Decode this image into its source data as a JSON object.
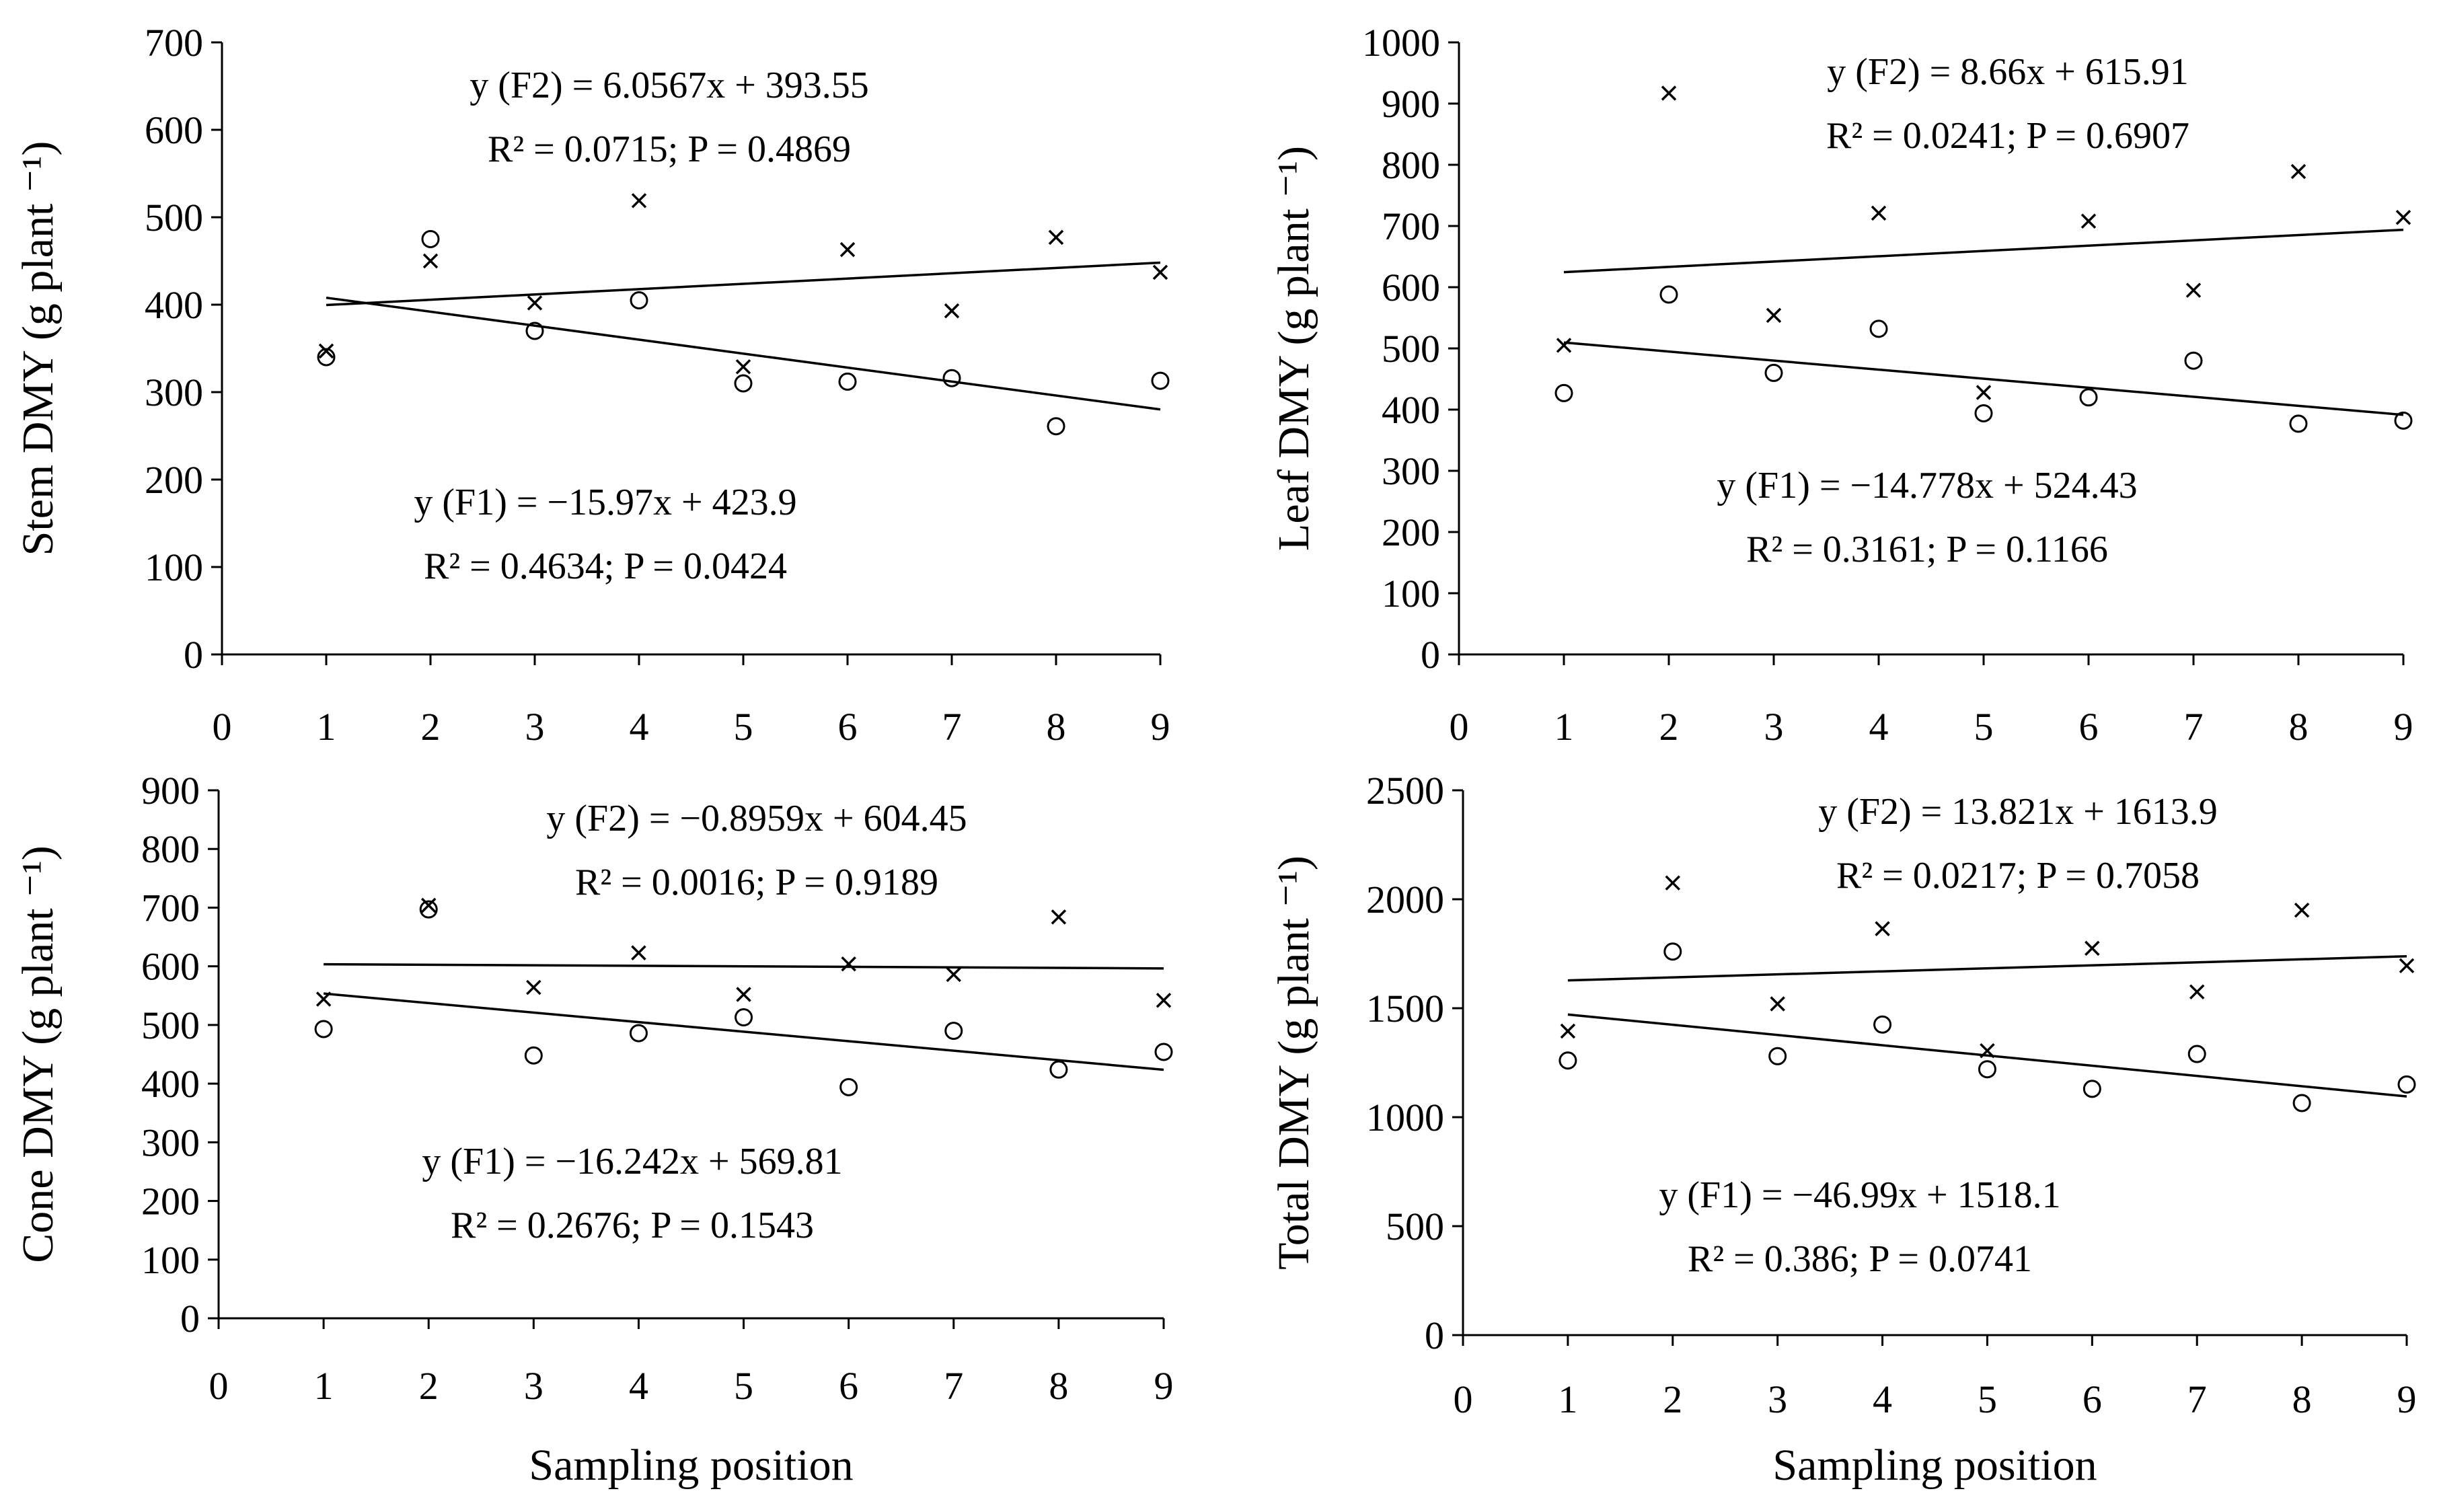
{
  "chart_data": [
    {
      "type": "scatter",
      "id": "stem",
      "title": "",
      "xlabel": "",
      "ylabel": "Stem DMY (g plant ⁻¹)",
      "xlim": [
        0,
        9
      ],
      "ylim": [
        0,
        700
      ],
      "xticks": [
        0,
        1,
        2,
        3,
        4,
        5,
        6,
        7,
        8,
        9
      ],
      "yticks": [
        0,
        100,
        200,
        300,
        400,
        500,
        600,
        700
      ],
      "grid": false,
      "series": [
        {
          "name": "F1",
          "marker": "circle",
          "x": [
            1,
            2,
            3,
            4,
            5,
            6,
            7,
            8,
            9
          ],
          "y": [
            340,
            475,
            370,
            405,
            310,
            312,
            316,
            261,
            313
          ],
          "trend": {
            "slope": -15.97,
            "intercept": 423.9,
            "x_from": 1,
            "x_to": 9
          },
          "equation": "y (F1) = −15.97x + 423.9",
          "stats": "R² = 0.4634; P = 0.0424"
        },
        {
          "name": "F2",
          "marker": "cross",
          "x": [
            1,
            2,
            3,
            4,
            5,
            6,
            7,
            8,
            9
          ],
          "y": [
            347,
            450,
            402,
            519,
            329,
            463,
            393,
            477,
            437
          ],
          "trend": {
            "slope": 6.0567,
            "intercept": 393.55,
            "x_from": 1,
            "x_to": 9
          },
          "equation": "y (F2) = 6.0567x + 393.55",
          "stats": "R² = 0.0715; P = 0.4869"
        }
      ]
    },
    {
      "type": "scatter",
      "id": "leaf",
      "title": "",
      "xlabel": "",
      "ylabel": "Leaf DMY (g plant ⁻¹)",
      "xlim": [
        0,
        9
      ],
      "ylim": [
        0,
        1000
      ],
      "xticks": [
        0,
        1,
        2,
        3,
        4,
        5,
        6,
        7,
        8,
        9
      ],
      "yticks": [
        0,
        100,
        200,
        300,
        400,
        500,
        600,
        700,
        800,
        900,
        1000
      ],
      "grid": false,
      "series": [
        {
          "name": "F1",
          "marker": "circle",
          "x": [
            1,
            2,
            3,
            4,
            5,
            6,
            7,
            8,
            9
          ],
          "y": [
            427,
            588,
            460,
            532,
            394,
            420,
            480,
            377,
            382
          ],
          "trend": {
            "slope": -14.778,
            "intercept": 524.43,
            "x_from": 1,
            "x_to": 9
          },
          "equation": "y (F1) = −14.778x + 524.43",
          "stats": "R² = 0.3161; P = 0.1166"
        },
        {
          "name": "F2",
          "marker": "cross",
          "x": [
            1,
            2,
            3,
            4,
            5,
            6,
            7,
            8,
            9
          ],
          "y": [
            505,
            917,
            554,
            721,
            428,
            708,
            595,
            789,
            714
          ],
          "trend": {
            "slope": 8.66,
            "intercept": 615.91,
            "x_from": 1,
            "x_to": 9
          },
          "equation": "y (F2) = 8.66x + 615.91",
          "stats": "R² = 0.0241; P = 0.6907"
        }
      ]
    },
    {
      "type": "scatter",
      "id": "cone",
      "title": "",
      "xlabel": "Sampling position",
      "ylabel": "Cone DMY (g plant ⁻¹)",
      "xlim": [
        0,
        9
      ],
      "ylim": [
        0,
        900
      ],
      "xticks": [
        0,
        1,
        2,
        3,
        4,
        5,
        6,
        7,
        8,
        9
      ],
      "yticks": [
        0,
        100,
        200,
        300,
        400,
        500,
        600,
        700,
        800,
        900
      ],
      "grid": false,
      "series": [
        {
          "name": "F1",
          "marker": "circle",
          "x": [
            1,
            2,
            3,
            4,
            5,
            6,
            7,
            8,
            9
          ],
          "y": [
            493,
            697,
            448,
            486,
            513,
            394,
            490,
            424,
            454
          ],
          "trend": {
            "slope": -16.242,
            "intercept": 569.81,
            "x_from": 1,
            "x_to": 9
          },
          "equation": "y (F1) = −16.242x + 569.81",
          "stats": "R² = 0.2676; P = 0.1543"
        },
        {
          "name": "F2",
          "marker": "cross",
          "x": [
            1,
            2,
            3,
            4,
            5,
            6,
            7,
            8,
            9
          ],
          "y": [
            544,
            704,
            564,
            623,
            552,
            604,
            586,
            684,
            542
          ],
          "trend": {
            "slope": -0.8959,
            "intercept": 604.45,
            "x_from": 1,
            "x_to": 9
          },
          "equation": "y (F2) = −0.8959x + 604.45",
          "stats": "R² = 0.0016; P = 0.9189"
        }
      ]
    },
    {
      "type": "scatter",
      "id": "total",
      "title": "",
      "xlabel": "Sampling position",
      "ylabel": "Total DMY (g plant ⁻¹)",
      "xlim": [
        0,
        9
      ],
      "ylim": [
        0,
        2500
      ],
      "xticks": [
        0,
        1,
        2,
        3,
        4,
        5,
        6,
        7,
        8,
        9
      ],
      "yticks": [
        0,
        500,
        1000,
        1500,
        2000,
        2500
      ],
      "grid": false,
      "series": [
        {
          "name": "F1",
          "marker": "circle",
          "x": [
            1,
            2,
            3,
            4,
            5,
            6,
            7,
            8,
            9
          ],
          "y": [
            1260,
            1760,
            1280,
            1425,
            1220,
            1130,
            1290,
            1065,
            1150
          ],
          "trend": {
            "slope": -46.99,
            "intercept": 1518.1,
            "x_from": 1,
            "x_to": 9
          },
          "equation": "y (F1) = −46.99x + 1518.1",
          "stats": "R² = 0.386; P = 0.0741"
        },
        {
          "name": "F2",
          "marker": "cross",
          "x": [
            1,
            2,
            3,
            4,
            5,
            6,
            7,
            8,
            9
          ],
          "y": [
            1395,
            2075,
            1520,
            1865,
            1305,
            1775,
            1575,
            1950,
            1695
          ],
          "trend": {
            "slope": 13.821,
            "intercept": 1613.9,
            "x_from": 1,
            "x_to": 9
          },
          "equation": "y (F2) = 13.821x + 1613.9",
          "stats": "R² = 0.0217; P = 0.7058"
        }
      ]
    }
  ]
}
